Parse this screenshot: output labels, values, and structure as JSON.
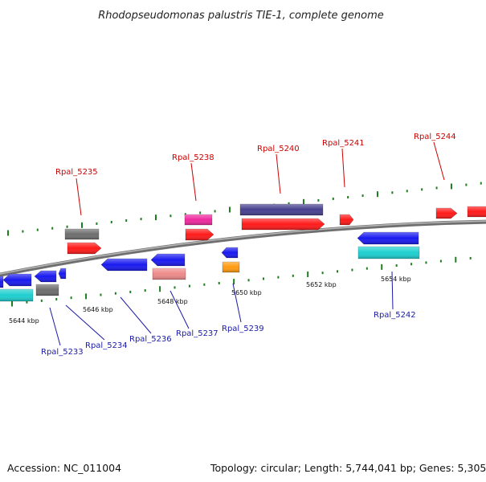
{
  "title": "Rhodopseudomonas palustris TIE-1, complete genome",
  "footer": {
    "accession": "Accession: NC_011004",
    "summary": "Topology: circular; Length: 5,744,041 bp; Genes: 5,305"
  },
  "colors": {
    "backbone": "#8a8a8a",
    "tick": "#1e7d1e",
    "forward_label": "#cc0000",
    "reverse_label": "#1a1aa6",
    "red": "#ff1a1a",
    "blue": "#1a1af0",
    "gray": "#6e6e6e",
    "magenta": "#ee2a9e",
    "indigo": "#46408e",
    "cyan": "#1ecfcf",
    "pink": "#ee8a8a",
    "orange": "#ff9a10"
  },
  "position_ticks": [
    {
      "label": "5644 kbp"
    },
    {
      "label": "5646 kbp"
    },
    {
      "label": "5648 kbp"
    },
    {
      "label": "5650 kbp"
    },
    {
      "label": "5652 kbp"
    },
    {
      "label": "5654 kbp"
    }
  ],
  "forward_gene_labels": [
    "Rpal_5235",
    "Rpal_5238",
    "Rpal_5240",
    "Rpal_5241",
    "Rpal_5244"
  ],
  "reverse_gene_labels": [
    "Rpal_5233",
    "Rpal_5234",
    "Rpal_5236",
    "Rpal_5237",
    "Rpal_5239",
    "Rpal_5242"
  ]
}
